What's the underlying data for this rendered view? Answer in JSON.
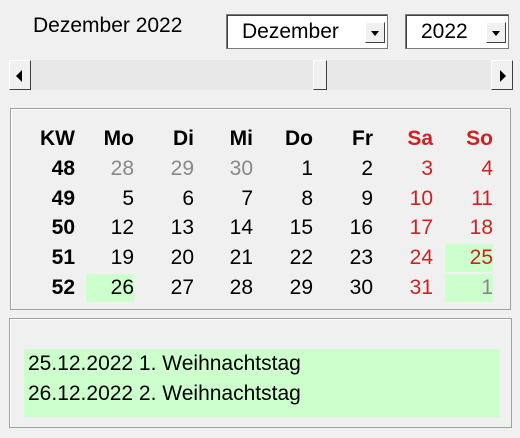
{
  "header": {
    "title": "Dezember 2022",
    "month_select": {
      "value": "Dezember"
    },
    "year_select": {
      "value": "2022"
    }
  },
  "calendar": {
    "headers": [
      "KW",
      "Mo",
      "Di",
      "Mi",
      "Do",
      "Fr",
      "Sa",
      "So"
    ],
    "weeks": [
      {
        "kw": "48",
        "days": [
          {
            "d": "28",
            "style": "other"
          },
          {
            "d": "29",
            "style": "other"
          },
          {
            "d": "30",
            "style": "other"
          },
          {
            "d": "1",
            "style": "normal"
          },
          {
            "d": "2",
            "style": "normal"
          },
          {
            "d": "3",
            "style": "weekend"
          },
          {
            "d": "4",
            "style": "weekend"
          }
        ]
      },
      {
        "kw": "49",
        "days": [
          {
            "d": "5",
            "style": "normal"
          },
          {
            "d": "6",
            "style": "normal"
          },
          {
            "d": "7",
            "style": "normal"
          },
          {
            "d": "8",
            "style": "normal"
          },
          {
            "d": "9",
            "style": "normal"
          },
          {
            "d": "10",
            "style": "weekend"
          },
          {
            "d": "11",
            "style": "weekend"
          }
        ]
      },
      {
        "kw": "50",
        "days": [
          {
            "d": "12",
            "style": "normal"
          },
          {
            "d": "13",
            "style": "normal"
          },
          {
            "d": "14",
            "style": "normal"
          },
          {
            "d": "15",
            "style": "normal"
          },
          {
            "d": "16",
            "style": "normal"
          },
          {
            "d": "17",
            "style": "weekend"
          },
          {
            "d": "18",
            "style": "weekend"
          }
        ]
      },
      {
        "kw": "51",
        "days": [
          {
            "d": "19",
            "style": "normal"
          },
          {
            "d": "20",
            "style": "normal"
          },
          {
            "d": "21",
            "style": "normal"
          },
          {
            "d": "22",
            "style": "normal"
          },
          {
            "d": "23",
            "style": "normal"
          },
          {
            "d": "24",
            "style": "weekend"
          },
          {
            "d": "25",
            "style": "weekend",
            "holiday": true
          }
        ]
      },
      {
        "kw": "52",
        "days": [
          {
            "d": "26",
            "style": "normal",
            "holiday": true
          },
          {
            "d": "27",
            "style": "normal"
          },
          {
            "d": "28",
            "style": "normal"
          },
          {
            "d": "29",
            "style": "normal"
          },
          {
            "d": "30",
            "style": "normal"
          },
          {
            "d": "31",
            "style": "weekend"
          },
          {
            "d": "1",
            "style": "other",
            "holiday": true
          }
        ]
      }
    ]
  },
  "holidays": [
    {
      "text": "25.12.2022 1. Weihnachtstag"
    },
    {
      "text": "26.12.2022 2. Weihnachtstag"
    }
  ],
  "colors": {
    "weekend": "#cc2222",
    "other_month": "#888888",
    "normal": "#000000",
    "holiday_bg": "#ccffcc"
  }
}
